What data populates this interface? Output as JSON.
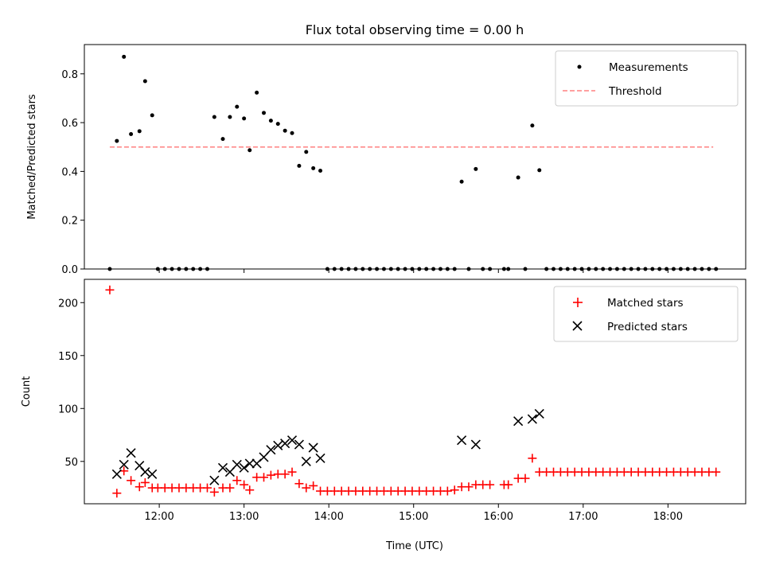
{
  "title": "Flux total observing time = 0.00 h",
  "colors": {
    "measurement": "#000000",
    "threshold": "#ff8080",
    "matched": "#ff0000",
    "predicted": "#000000"
  },
  "chart_data": [
    {
      "type": "scatter",
      "ylabel": "Matched/Predicted stars",
      "ylim": [
        0,
        0.92
      ],
      "yticks": [
        "0.0",
        "0.2",
        "0.4",
        "0.6",
        "0.8"
      ],
      "ytick_values": [
        0,
        0.2,
        0.4,
        0.6,
        0.8
      ],
      "xlim": [
        "11:07",
        "18:55"
      ],
      "legend": {
        "position": "top-right",
        "entries": [
          "Measurements",
          "Threshold"
        ]
      },
      "threshold": {
        "name": "Threshold",
        "value": 0.5,
        "x_range": [
          "11:25",
          "18:32"
        ]
      },
      "series": [
        {
          "name": "Measurements",
          "points": [
            [
              "11:25",
              0
            ],
            [
              "11:30",
              0.525
            ],
            [
              "11:35",
              0.87
            ],
            [
              "11:40",
              0.553
            ],
            [
              "11:46",
              0.565
            ],
            [
              "11:50",
              0.77
            ],
            [
              "11:55",
              0.63
            ],
            [
              "11:59",
              0
            ],
            [
              "12:04",
              0
            ],
            [
              "12:09",
              0
            ],
            [
              "12:14",
              0
            ],
            [
              "12:19",
              0
            ],
            [
              "12:24",
              0
            ],
            [
              "12:29",
              0
            ],
            [
              "12:34",
              0
            ],
            [
              "12:39",
              0.623
            ],
            [
              "12:45",
              0.533
            ],
            [
              "12:50",
              0.623
            ],
            [
              "12:55",
              0.665
            ],
            [
              "13:00",
              0.617
            ],
            [
              "13:04",
              0.487
            ],
            [
              "13:09",
              0.723
            ],
            [
              "13:14",
              0.64
            ],
            [
              "13:19",
              0.608
            ],
            [
              "13:24",
              0.595
            ],
            [
              "13:29",
              0.567
            ],
            [
              "13:34",
              0.557
            ],
            [
              "13:39",
              0.423
            ],
            [
              "13:44",
              0.48
            ],
            [
              "13:49",
              0.413
            ],
            [
              "13:54",
              0.403
            ],
            [
              "13:59",
              0
            ],
            [
              "14:04",
              0
            ],
            [
              "14:09",
              0
            ],
            [
              "14:14",
              0
            ],
            [
              "14:19",
              0
            ],
            [
              "14:24",
              0
            ],
            [
              "14:29",
              0
            ],
            [
              "14:34",
              0
            ],
            [
              "14:39",
              0
            ],
            [
              "14:44",
              0
            ],
            [
              "14:49",
              0
            ],
            [
              "14:54",
              0
            ],
            [
              "14:59",
              0
            ],
            [
              "15:04",
              0
            ],
            [
              "15:09",
              0
            ],
            [
              "15:14",
              0
            ],
            [
              "15:19",
              0
            ],
            [
              "15:24",
              0
            ],
            [
              "15:29",
              0
            ],
            [
              "15:34",
              0.358
            ],
            [
              "15:39",
              0
            ],
            [
              "15:44",
              0.41
            ],
            [
              "15:49",
              0
            ],
            [
              "15:54",
              0
            ],
            [
              "16:04",
              0
            ],
            [
              "16:07",
              0
            ],
            [
              "16:14",
              0.375
            ],
            [
              "16:19",
              0
            ],
            [
              "16:24",
              0.588
            ],
            [
              "16:29",
              0.405
            ],
            [
              "16:34",
              0
            ],
            [
              "16:39",
              0
            ],
            [
              "16:44",
              0
            ],
            [
              "16:49",
              0
            ],
            [
              "16:54",
              0
            ],
            [
              "16:59",
              0
            ],
            [
              "17:04",
              0
            ],
            [
              "17:09",
              0
            ],
            [
              "17:14",
              0
            ],
            [
              "17:19",
              0
            ],
            [
              "17:24",
              0
            ],
            [
              "17:29",
              0
            ],
            [
              "17:34",
              0
            ],
            [
              "17:39",
              0
            ],
            [
              "17:44",
              0
            ],
            [
              "17:49",
              0
            ],
            [
              "17:54",
              0
            ],
            [
              "17:59",
              0
            ],
            [
              "18:04",
              0
            ],
            [
              "18:09",
              0
            ],
            [
              "18:14",
              0
            ],
            [
              "18:19",
              0
            ],
            [
              "18:24",
              0
            ],
            [
              "18:29",
              0
            ],
            [
              "18:34",
              0
            ]
          ]
        }
      ]
    },
    {
      "type": "scatter",
      "xlabel": "Time (UTC)",
      "ylabel": "Count",
      "ylim": [
        10,
        222
      ],
      "yticks": [
        "50",
        "100",
        "150",
        "200"
      ],
      "ytick_values": [
        50,
        100,
        150,
        200
      ],
      "xlim": [
        "11:07",
        "18:55"
      ],
      "xticks": [
        "12:00",
        "13:00",
        "14:00",
        "15:00",
        "16:00",
        "17:00",
        "18:00"
      ],
      "legend": {
        "position": "top-right",
        "entries": [
          "Matched stars",
          "Predicted stars"
        ]
      },
      "series": [
        {
          "name": "Matched stars",
          "marker": "+",
          "points": [
            [
              "11:25",
              212
            ],
            [
              "11:30",
              20
            ],
            [
              "11:35",
              41
            ],
            [
              "11:40",
              32
            ],
            [
              "11:46",
              26
            ],
            [
              "11:50",
              30
            ],
            [
              "11:55",
              25
            ],
            [
              "11:59",
              25
            ],
            [
              "12:04",
              25
            ],
            [
              "12:09",
              25
            ],
            [
              "12:14",
              25
            ],
            [
              "12:19",
              25
            ],
            [
              "12:24",
              25
            ],
            [
              "12:29",
              25
            ],
            [
              "12:34",
              25
            ],
            [
              "12:39",
              21
            ],
            [
              "12:45",
              25
            ],
            [
              "12:50",
              25
            ],
            [
              "12:55",
              32
            ],
            [
              "13:00",
              28
            ],
            [
              "13:04",
              23
            ],
            [
              "13:09",
              35
            ],
            [
              "13:14",
              35
            ],
            [
              "13:19",
              37
            ],
            [
              "13:24",
              38
            ],
            [
              "13:29",
              38
            ],
            [
              "13:34",
              40
            ],
            [
              "13:39",
              29
            ],
            [
              "13:44",
              25
            ],
            [
              "13:49",
              27
            ],
            [
              "13:54",
              22
            ],
            [
              "13:59",
              22
            ],
            [
              "14:04",
              22
            ],
            [
              "14:09",
              22
            ],
            [
              "14:14",
              22
            ],
            [
              "14:19",
              22
            ],
            [
              "14:24",
              22
            ],
            [
              "14:29",
              22
            ],
            [
              "14:34",
              22
            ],
            [
              "14:39",
              22
            ],
            [
              "14:44",
              22
            ],
            [
              "14:49",
              22
            ],
            [
              "14:54",
              22
            ],
            [
              "14:59",
              22
            ],
            [
              "15:04",
              22
            ],
            [
              "15:09",
              22
            ],
            [
              "15:14",
              22
            ],
            [
              "15:19",
              22
            ],
            [
              "15:24",
              22
            ],
            [
              "15:29",
              23
            ],
            [
              "15:34",
              26
            ],
            [
              "15:39",
              26
            ],
            [
              "15:44",
              28
            ],
            [
              "15:49",
              28
            ],
            [
              "15:54",
              28
            ],
            [
              "16:04",
              28
            ],
            [
              "16:07",
              28
            ],
            [
              "16:14",
              34
            ],
            [
              "16:19",
              34
            ],
            [
              "16:24",
              53
            ],
            [
              "16:29",
              40
            ],
            [
              "16:34",
              40
            ],
            [
              "16:39",
              40
            ],
            [
              "16:44",
              40
            ],
            [
              "16:49",
              40
            ],
            [
              "16:54",
              40
            ],
            [
              "16:59",
              40
            ],
            [
              "17:04",
              40
            ],
            [
              "17:09",
              40
            ],
            [
              "17:14",
              40
            ],
            [
              "17:19",
              40
            ],
            [
              "17:24",
              40
            ],
            [
              "17:29",
              40
            ],
            [
              "17:34",
              40
            ],
            [
              "17:39",
              40
            ],
            [
              "17:44",
              40
            ],
            [
              "17:49",
              40
            ],
            [
              "17:54",
              40
            ],
            [
              "17:59",
              40
            ],
            [
              "18:04",
              40
            ],
            [
              "18:09",
              40
            ],
            [
              "18:14",
              40
            ],
            [
              "18:19",
              40
            ],
            [
              "18:24",
              40
            ],
            [
              "18:29",
              40
            ],
            [
              "18:34",
              40
            ]
          ]
        },
        {
          "name": "Predicted stars",
          "marker": "x",
          "points": [
            [
              "11:30",
              38
            ],
            [
              "11:35",
              47
            ],
            [
              "11:40",
              58
            ],
            [
              "11:46",
              46
            ],
            [
              "11:50",
              40
            ],
            [
              "11:55",
              38
            ],
            [
              "12:39",
              32
            ],
            [
              "12:45",
              44
            ],
            [
              "12:50",
              40
            ],
            [
              "12:55",
              47
            ],
            [
              "13:00",
              44
            ],
            [
              "13:04",
              48
            ],
            [
              "13:09",
              48
            ],
            [
              "13:14",
              54
            ],
            [
              "13:19",
              61
            ],
            [
              "13:24",
              65
            ],
            [
              "13:29",
              67
            ],
            [
              "13:34",
              70
            ],
            [
              "13:39",
              66
            ],
            [
              "13:44",
              50
            ],
            [
              "13:49",
              63
            ],
            [
              "13:54",
              53
            ],
            [
              "15:34",
              70
            ],
            [
              "15:44",
              66
            ],
            [
              "16:14",
              88
            ],
            [
              "16:24",
              90
            ],
            [
              "16:29",
              95
            ]
          ]
        }
      ]
    }
  ]
}
